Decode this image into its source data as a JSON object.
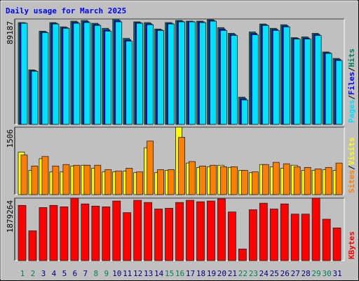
{
  "chart_data": [
    {
      "type": "bar",
      "title": "Daily usage for March 2025",
      "series": [
        {
          "name": "Hits",
          "color": "#00805c",
          "values": [
            86150,
            46110,
            78870,
            86150,
            82510,
            87360,
            87970,
            85540,
            81300,
            89187,
            72800,
            86760,
            86150,
            80690,
            86150,
            87970,
            87360,
            87360,
            88580,
            81900,
            77050,
            23050,
            78260,
            84940,
            81300,
            84330,
            73410,
            74020,
            77050,
            61280,
            55820
          ]
        },
        {
          "name": "Files",
          "color": "#0000ff",
          "values": [
            85840,
            45500,
            78260,
            85540,
            81900,
            86450,
            87060,
            84630,
            80080,
            87970,
            71590,
            86150,
            85240,
            80080,
            85540,
            87360,
            87060,
            86760,
            87970,
            80690,
            76140,
            21840,
            77050,
            84330,
            80390,
            83420,
            72800,
            73110,
            76140,
            60670,
            54910
          ]
        },
        {
          "name": "Pages",
          "color": "#00e0ff",
          "values": [
            85540,
            44900,
            77660,
            84940,
            81300,
            85540,
            86150,
            83720,
            78870,
            86760,
            70380,
            85540,
            84330,
            79480,
            84940,
            86760,
            86760,
            86150,
            87360,
            79480,
            75230,
            20630,
            75840,
            83720,
            79480,
            82510,
            72200,
            72200,
            75230,
            60060,
            54000
          ]
        }
      ],
      "ylim": [
        0,
        89187
      ],
      "yticks": [
        89187
      ]
    },
    {
      "type": "bar",
      "series": [
        {
          "name": "Visits",
          "color": "#ffff00",
          "values": [
            949,
            540,
            802,
            507,
            507,
            638,
            655,
            589,
            507,
            507,
            524,
            491,
            1048,
            491,
            540,
            1506,
            704,
            606,
            622,
            655,
            606,
            540,
            491,
            671,
            622,
            589,
            655,
            540,
            540,
            557,
            540
          ]
        },
        {
          "name": "Sites",
          "color": "#ff8000",
          "values": [
            884,
            638,
            851,
            638,
            671,
            655,
            655,
            655,
            557,
            524,
            589,
            507,
            1195,
            557,
            557,
            1277,
            737,
            638,
            655,
            622,
            622,
            540,
            507,
            671,
            720,
            688,
            622,
            606,
            573,
            606,
            704
          ]
        }
      ],
      "ylim": [
        0,
        1506
      ],
      "yticks": [
        1506
      ]
    },
    {
      "type": "bar",
      "series": [
        {
          "name": "KBytes",
          "color": "#ff0000",
          "values": [
            1660750,
            895930,
            1595200,
            1660750,
            1617050,
            1879264,
            1704460,
            1638900,
            1617050,
            1791860,
            1442230,
            1813720,
            1748160,
            1551490,
            1573340,
            1748160,
            1813720,
            1770010,
            1791860,
            1857420,
            1464080,
            349630,
            1529640,
            1726310,
            1551490,
            1704460,
            1398530,
            1398530,
            1879264,
            1245560,
            983340
          ]
        }
      ],
      "ylim": [
        0,
        1879264
      ],
      "yticks": [
        1879264
      ],
      "categories": [
        "1",
        "2",
        "3",
        "4",
        "5",
        "6",
        "7",
        "8",
        "9",
        "10",
        "11",
        "12",
        "13",
        "14",
        "15",
        "16",
        "17",
        "18",
        "19",
        "20",
        "21",
        "22",
        "23",
        "24",
        "25",
        "26",
        "27",
        "28",
        "29",
        "30",
        "31"
      ],
      "category_colors": [
        "#00805c",
        "#00805c",
        "#000080",
        "#000080",
        "#000080",
        "#000080",
        "#000080",
        "#00805c",
        "#00805c",
        "#000080",
        "#000080",
        "#000080",
        "#000080",
        "#000080",
        "#00805c",
        "#00805c",
        "#000080",
        "#000080",
        "#000080",
        "#000080",
        "#000080",
        "#00805c",
        "#00805c",
        "#000080",
        "#000080",
        "#000080",
        "#000080",
        "#000080",
        "#00805c",
        "#00805c",
        "#000080"
      ]
    }
  ]
}
